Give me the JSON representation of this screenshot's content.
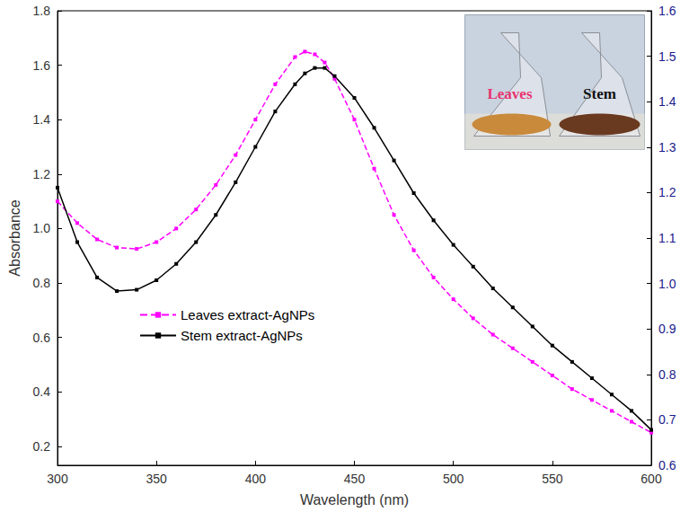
{
  "chart_data": {
    "type": "line",
    "x_label": "Wavelength (nm)",
    "y_label": "Absorbance",
    "x": [
      300,
      310,
      320,
      330,
      340,
      350,
      360,
      370,
      380,
      390,
      400,
      410,
      420,
      425,
      430,
      435,
      440,
      450,
      460,
      470,
      480,
      490,
      500,
      510,
      520,
      530,
      540,
      550,
      560,
      570,
      580,
      590,
      600
    ],
    "series": [
      {
        "name": "Leaves extract-AgNPs",
        "color": "#ff00ff",
        "marker": "square",
        "line_style": "dashed",
        "values": [
          1.1,
          1.02,
          0.96,
          0.93,
          0.925,
          0.95,
          1.0,
          1.07,
          1.16,
          1.27,
          1.4,
          1.53,
          1.63,
          1.65,
          1.64,
          1.61,
          1.55,
          1.4,
          1.22,
          1.05,
          0.92,
          0.82,
          0.74,
          0.67,
          0.61,
          0.56,
          0.51,
          0.46,
          0.41,
          0.37,
          0.33,
          0.29,
          0.25
        ]
      },
      {
        "name": "Stem extract-AgNPs",
        "color": "#000000",
        "marker": "square",
        "line_style": "solid",
        "values": [
          1.15,
          0.95,
          0.82,
          0.77,
          0.775,
          0.81,
          0.87,
          0.95,
          1.05,
          1.17,
          1.3,
          1.43,
          1.53,
          1.57,
          1.59,
          1.59,
          1.56,
          1.48,
          1.37,
          1.25,
          1.13,
          1.03,
          0.94,
          0.86,
          0.78,
          0.71,
          0.64,
          0.57,
          0.51,
          0.45,
          0.39,
          0.33,
          0.26
        ]
      }
    ],
    "xlim": [
      300,
      600
    ],
    "xticks": [
      300,
      350,
      400,
      450,
      500,
      550,
      600
    ],
    "ylim": [
      0.13,
      1.8
    ],
    "yticks": [
      0.2,
      0.4,
      0.6,
      0.8,
      {
        "value": 1,
        "label": "1.0"
      },
      1.2,
      1.4,
      1.6,
      1.8
    ],
    "y2lim": [
      0.6,
      1.6
    ],
    "y2ticks": [
      0.6,
      0.7,
      0.8,
      0.9,
      {
        "value": 1,
        "label": "1.0"
      },
      1.1,
      1.2,
      1.3,
      1.4,
      1.5,
      1.6
    ],
    "y2_color": "#1a1a8c",
    "legend": "lower left",
    "grid": false,
    "annotations": [
      {
        "text": "Leaves",
        "color": "#e8336f"
      },
      {
        "text": "Stem",
        "color": "#111111"
      }
    ]
  }
}
